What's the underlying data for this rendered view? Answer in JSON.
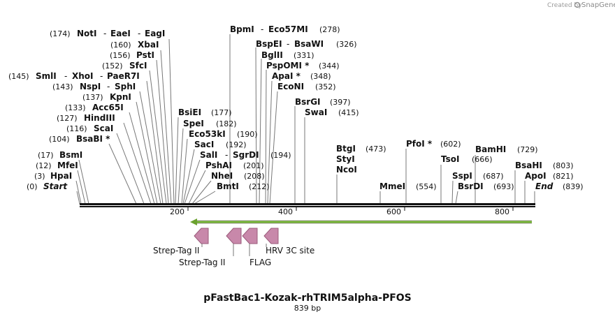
{
  "credit": {
    "prefix": "Created by",
    "brand": "SnapGene"
  },
  "map": {
    "title": "pFastBac1-Kozak-rhTRIM5alpha-PFOS",
    "length_label": "839 bp",
    "length": 839
  },
  "axis_ticks": [
    "200",
    "400",
    "600",
    "800"
  ],
  "left_labels": [
    {
      "name": "NotI",
      "extra": [
        "EaeI",
        "EagI"
      ],
      "pos": "(174)"
    },
    {
      "name": "XbaI",
      "pos": "(160)"
    },
    {
      "name": "PstI",
      "pos": "(156)"
    },
    {
      "name": "SfcI",
      "pos": "(152)"
    },
    {
      "name": "SmlI",
      "extra": [
        "XhoI",
        "PaeR7I"
      ],
      "pos": "(145)"
    },
    {
      "name": "NspI",
      "extra": [
        "SphI"
      ],
      "pos": "(143)"
    },
    {
      "name": "KpnI",
      "pos": "(137)"
    },
    {
      "name": "Acc65I",
      "pos": "(133)"
    },
    {
      "name": "HindIII",
      "pos": "(127)"
    },
    {
      "name": "ScaI",
      "pos": "(116)"
    },
    {
      "name": "BsaBI *",
      "pos": "(104)"
    },
    {
      "name": "BsmI",
      "pos": "(17)"
    },
    {
      "name": "MfeI",
      "pos": "(12)"
    },
    {
      "name": "HpaI",
      "pos": "(3)"
    },
    {
      "name": "Start",
      "pos": "(0)"
    }
  ],
  "mid_labels": [
    {
      "name": "BsiEI",
      "pos": "(177)"
    },
    {
      "name": "SpeI",
      "pos": "(182)"
    },
    {
      "name": "Eco53kI",
      "pos": "(190)"
    },
    {
      "name": "SacI",
      "pos": "(192)"
    },
    {
      "name": "SalI",
      "extra": [
        "SgrDI"
      ],
      "pos": "(194)"
    },
    {
      "name": "PshAI",
      "pos": "(201)"
    },
    {
      "name": "NheI",
      "pos": "(208)"
    },
    {
      "name": "BmtI",
      "pos": "(212)"
    }
  ],
  "top_labels": [
    {
      "name": "BpmI",
      "extra": [
        "Eco57MI"
      ],
      "pos": "(278)"
    },
    {
      "name": "BspEI",
      "extra": [
        "BsaWI"
      ],
      "pos": "(326)"
    },
    {
      "name": "BglII",
      "pos": "(331)"
    },
    {
      "name": "PspOMI *",
      "pos": "(344)"
    },
    {
      "name": "ApaI *",
      "pos": "(348)"
    },
    {
      "name": "EcoNI",
      "pos": "(352)"
    },
    {
      "name": "BsrGI",
      "pos": "(397)"
    },
    {
      "name": "SwaI",
      "pos": "(415)"
    }
  ],
  "right_labels": [
    {
      "name": "BtgI",
      "pos": "(473)"
    },
    {
      "name": "StyI"
    },
    {
      "name": "NcoI"
    },
    {
      "name": "MmeI",
      "pos": "(554)"
    },
    {
      "name": "PfoI *",
      "pos": "(602)"
    },
    {
      "name": "TsoI",
      "pos": "(666)"
    },
    {
      "name": "SspI",
      "pos": "(687)"
    },
    {
      "name": "BsrDI",
      "pos": "(693)"
    },
    {
      "name": "BamHI",
      "pos": "(729)"
    },
    {
      "name": "BsaHI",
      "pos": "(803)"
    },
    {
      "name": "ApoI",
      "pos": "(821)"
    },
    {
      "name": "End",
      "pos": "(839)"
    }
  ],
  "features": [
    {
      "name": "Strep-Tag II",
      "direction": "reverse",
      "color": "#c888aa"
    },
    {
      "name": "Strep-Tag II",
      "direction": "reverse",
      "color": "#c888aa"
    },
    {
      "name": "FLAG",
      "direction": "reverse",
      "color": "#c888aa"
    },
    {
      "name": "HRV 3C site",
      "direction": "reverse",
      "color": "#c888aa"
    }
  ],
  "orf": {
    "direction": "reverse",
    "color": "#7ac143"
  },
  "colors": {
    "backbone": "#111111",
    "line": "#777777",
    "feature_stroke": "#9a5a7a"
  }
}
